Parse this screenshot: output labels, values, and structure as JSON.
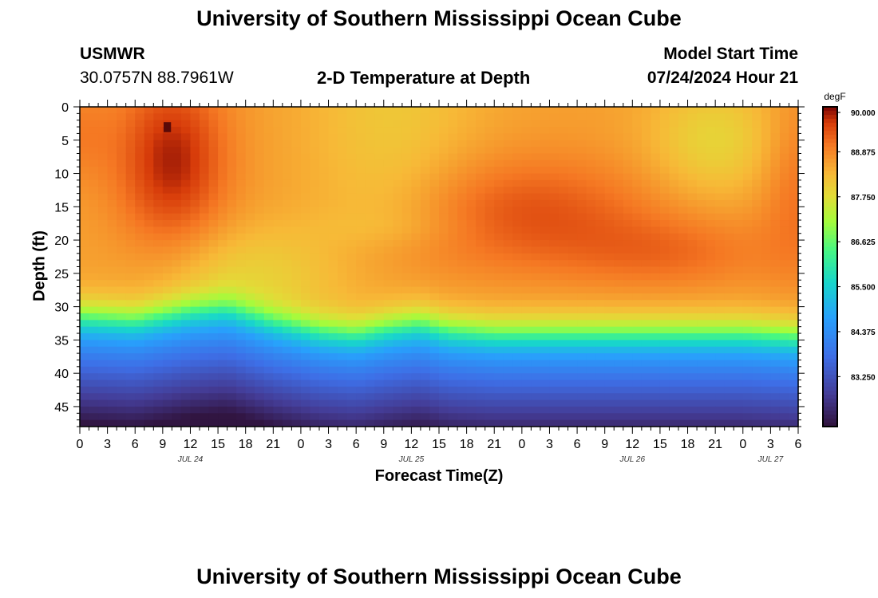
{
  "header": {
    "title": "University of Southern Mississippi Ocean Cube",
    "station_name": "USMWR",
    "station_coords": "30.0757N  88.7961W",
    "plot_title": "2-D Temperature at Depth",
    "model_start_label": "Model Start Time",
    "model_start_value": "07/24/2024 Hour 21"
  },
  "footer": {
    "title": "University of Southern Mississippi Ocean Cube"
  },
  "chart_data": {
    "type": "heatmap",
    "title": "2-D Temperature at Depth",
    "xlabel": "Forecast Time(Z)",
    "ylabel": "Depth (ft)",
    "x_range_hours": [
      0,
      78
    ],
    "y_range_ft": [
      0,
      48
    ],
    "x_tick_labels": [
      "0",
      "3",
      "6",
      "9",
      "12",
      "15",
      "18",
      "21",
      "0",
      "3",
      "6",
      "9",
      "12",
      "15",
      "18",
      "21",
      "0",
      "3",
      "6",
      "9",
      "12",
      "15",
      "18",
      "21",
      "0",
      "3",
      "6"
    ],
    "y_ticks": [
      0,
      5,
      10,
      15,
      20,
      25,
      30,
      35,
      40,
      45
    ],
    "date_labels": [
      {
        "hour": 12,
        "label": "JUL 24"
      },
      {
        "hour": 36,
        "label": "JUL 25"
      },
      {
        "hour": 60,
        "label": "JUL 26"
      },
      {
        "hour": 75,
        "label": "JUL 27"
      }
    ],
    "colorbar": {
      "unit": "degF",
      "min": 82.0,
      "max": 90.0,
      "tick_labels": [
        "90.000",
        "88.875",
        "87.750",
        "86.625",
        "85.500",
        "84.375",
        "83.250"
      ],
      "tick_values": [
        90.0,
        88.875,
        87.75,
        86.625,
        85.5,
        84.375,
        83.25
      ]
    },
    "thermocline_depth_ft": [
      {
        "hour": 0,
        "depth": 31
      },
      {
        "hour": 6,
        "depth": 31.5
      },
      {
        "hour": 12,
        "depth": 30
      },
      {
        "hour": 16,
        "depth": 29.5
      },
      {
        "hour": 21,
        "depth": 31.5
      },
      {
        "hour": 26,
        "depth": 33
      },
      {
        "hour": 30,
        "depth": 33.5
      },
      {
        "hour": 34,
        "depth": 32.5
      },
      {
        "hour": 37,
        "depth": 32
      },
      {
        "hour": 40,
        "depth": 33
      },
      {
        "hour": 45,
        "depth": 33.5
      },
      {
        "hour": 54,
        "depth": 33.5
      },
      {
        "hour": 66,
        "depth": 33.5
      },
      {
        "hour": 72,
        "depth": 33.5
      },
      {
        "hour": 78,
        "depth": 34
      }
    ],
    "surface_features": [
      {
        "name": "warm-core",
        "hour": 10,
        "depth": 8,
        "temp_peak": 89.8
      },
      {
        "name": "cool-patch-1",
        "hour": 34,
        "depth": 7,
        "temp_peak": 88.2
      },
      {
        "name": "cool-patch-2",
        "hour": 69,
        "depth": 5,
        "temp_peak": 87.9
      },
      {
        "name": "warm-band",
        "hour": 48,
        "depth": 16,
        "temp_peak": 89.4
      }
    ],
    "max_point": {
      "hour": 9.5,
      "depth": 3.5,
      "temp": 90.0
    }
  }
}
